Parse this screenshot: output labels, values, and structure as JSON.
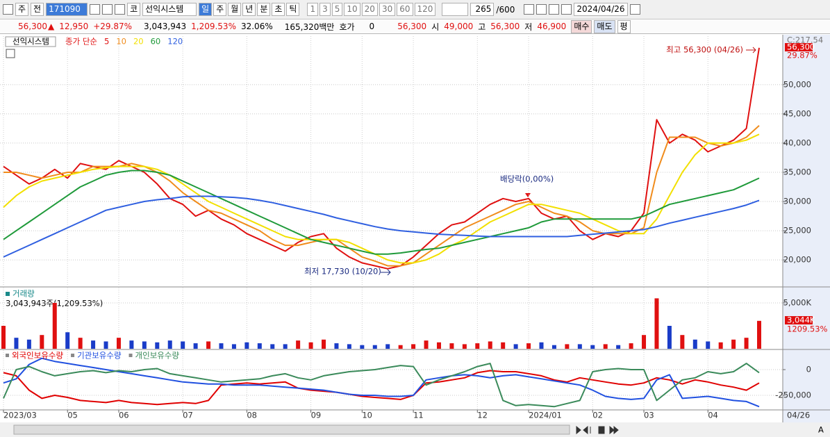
{
  "toolbar": {
    "period": "주",
    "prev": "전",
    "code": "171090",
    "market": "코",
    "name": "선익시스템",
    "intervals": [
      "일",
      "주",
      "월",
      "년",
      "분",
      "초",
      "틱"
    ],
    "multipliers": [
      "1",
      "3",
      "5",
      "10",
      "20",
      "30",
      "60",
      "120"
    ],
    "count": "265",
    "max": "/600",
    "date": "2024/04/26"
  },
  "info_bar": {
    "price": "56,300",
    "change": "12,950",
    "change_rate": "+29.87%",
    "volume": "3,043,943",
    "volume_rate": "1,209.53%",
    "turnover": "32.06%",
    "amount": "165,320백만",
    "quote_label": "호가",
    "quote": "0",
    "quote_price": "56,300",
    "open_label": "시",
    "open": "49,000",
    "high_label": "고",
    "high": "56,300",
    "low_label": "저",
    "low": "46,900",
    "buy": "매수",
    "sell": "매도",
    "avg": "평"
  },
  "status": {
    "zoom_icon": "A"
  },
  "chart_data": [
    {
      "type": "line",
      "title": "선익시스템",
      "legend_title": "종가 단순",
      "series": [
        {
          "name": "5",
          "color": "#e01010",
          "values": [
            36000,
            34500,
            33000,
            34000,
            35500,
            34000,
            36500,
            36000,
            35500,
            37000,
            36000,
            35000,
            33000,
            30500,
            29500,
            27500,
            28500,
            27000,
            26000,
            24500,
            23500,
            22500,
            21500,
            23000,
            24000,
            24500,
            22000,
            20500,
            19500,
            19000,
            18500,
            19000,
            20500,
            22500,
            24500,
            26000,
            26500,
            28000,
            29500,
            30500,
            30000,
            30500,
            28000,
            27000,
            27500,
            25000,
            23500,
            24500,
            24000,
            25000,
            28000,
            44000,
            40000,
            41500,
            40500,
            38500,
            39500,
            40500,
            42500,
            56300
          ]
        },
        {
          "name": "10",
          "color": "#f08c1c",
          "values": [
            35000,
            35000,
            34500,
            34000,
            34500,
            35000,
            35000,
            36000,
            36000,
            36000,
            36500,
            36000,
            35000,
            33500,
            31500,
            30000,
            28500,
            28000,
            27000,
            26000,
            25000,
            23500,
            22500,
            22500,
            23000,
            23500,
            23500,
            22000,
            20500,
            19800,
            19000,
            19000,
            19500,
            21000,
            22500,
            24000,
            25500,
            26500,
            27500,
            28500,
            29500,
            30000,
            29000,
            28000,
            27500,
            26500,
            25000,
            24500,
            24500,
            24500,
            25500,
            35000,
            41000,
            41000,
            41000,
            40000,
            39500,
            40000,
            41000,
            43000
          ]
        },
        {
          "name": "20",
          "color": "#f2e000",
          "values": [
            29000,
            31000,
            32500,
            33500,
            34000,
            34500,
            35000,
            35500,
            35800,
            36000,
            36000,
            36000,
            35500,
            34500,
            33000,
            31500,
            30000,
            29000,
            28000,
            27000,
            26000,
            25000,
            24000,
            23500,
            23500,
            23500,
            23500,
            23000,
            22000,
            21000,
            20000,
            19500,
            19500,
            20000,
            21000,
            22500,
            23500,
            25000,
            26500,
            27500,
            28500,
            29500,
            29500,
            29000,
            28500,
            28000,
            27000,
            26000,
            25000,
            24500,
            24500,
            27000,
            31000,
            35000,
            38000,
            40000,
            40000,
            40000,
            40500,
            41500
          ]
        },
        {
          "name": "60",
          "color": "#1f9a3a",
          "values": [
            23500,
            25000,
            26500,
            28000,
            29500,
            31000,
            32500,
            33500,
            34500,
            35000,
            35300,
            35300,
            35000,
            34500,
            33500,
            32500,
            31500,
            30500,
            29500,
            28500,
            27500,
            26500,
            25500,
            24500,
            23500,
            23000,
            22500,
            22000,
            21500,
            21000,
            21000,
            21200,
            21500,
            21800,
            22000,
            22500,
            23000,
            23500,
            24000,
            24500,
            25000,
            25500,
            26500,
            27000,
            27000,
            27000,
            27000,
            27000,
            27000,
            27000,
            27500,
            28500,
            29500,
            30000,
            30500,
            31000,
            31500,
            32000,
            33000,
            34000
          ]
        },
        {
          "name": "120",
          "color": "#2f5fe0",
          "values": [
            20500,
            21500,
            22500,
            23500,
            24500,
            25500,
            26500,
            27500,
            28500,
            29000,
            29500,
            30000,
            30300,
            30500,
            30800,
            30900,
            30900,
            30800,
            30700,
            30500,
            30200,
            29800,
            29300,
            28800,
            28300,
            27800,
            27200,
            26700,
            26200,
            25700,
            25300,
            25000,
            24800,
            24600,
            24400,
            24300,
            24200,
            24100,
            24000,
            24000,
            24000,
            24000,
            24000,
            24000,
            24000,
            24200,
            24400,
            24600,
            24800,
            25000,
            25200,
            25700,
            26300,
            26800,
            27300,
            27800,
            28300,
            28800,
            29400,
            30200
          ]
        }
      ],
      "ylim": [
        15500,
        58300
      ],
      "yticks": [
        {
          "value": 20000,
          "label": "20,000"
        },
        {
          "value": 25000,
          "label": "25,000"
        },
        {
          "value": 30000,
          "label": "30,000"
        },
        {
          "value": 35000,
          "label": "35,000"
        },
        {
          "value": 40000,
          "label": "40,000"
        },
        {
          "value": 45000,
          "label": "45,000"
        },
        {
          "value": 50000,
          "label": "50,000"
        }
      ],
      "grid": true,
      "annotations": [
        "최고 56,300 (04/26)",
        "배당락(0,00%)",
        "최저 17,730 (10/20)"
      ],
      "last_price_label": "56,300",
      "change_label": "29.87%",
      "scale_label": "C:217.54"
    },
    {
      "type": "bar",
      "title": "거래량",
      "subtitle": "3,043,943주(1,209.53%)",
      "values": [
        2500,
        1200,
        1000,
        1500,
        5000,
        1800,
        1200,
        900,
        800,
        1200,
        900,
        800,
        700,
        900,
        800,
        600,
        800,
        600,
        500,
        700,
        600,
        500,
        500,
        900,
        700,
        1000,
        600,
        500,
        400,
        400,
        500,
        400,
        500,
        900,
        700,
        600,
        500,
        600,
        800,
        700,
        500,
        600,
        700,
        400,
        500,
        500,
        400,
        500,
        400,
        600,
        1500,
        5500,
        2500,
        1500,
        1000,
        800,
        700,
        1000,
        1200,
        3043.943
      ],
      "up_color": "#e01010",
      "down_color": "#1a3cc8",
      "ylim": [
        0,
        6667
      ],
      "yticks": [
        {
          "value": 5000,
          "label": "5,000K"
        }
      ],
      "grid": true,
      "badges": [
        "3,044K",
        "1209.53%"
      ]
    },
    {
      "type": "line",
      "series": [
        {
          "name": "외국인보유수량",
          "color": "#e00000",
          "values": [
            -30000,
            -60000,
            -200000,
            -280000,
            -250000,
            -270000,
            -300000,
            -310000,
            -320000,
            -300000,
            -320000,
            -330000,
            -340000,
            -330000,
            -320000,
            -330000,
            -300000,
            -150000,
            -140000,
            -130000,
            -140000,
            -130000,
            -120000,
            -180000,
            -200000,
            -210000,
            -220000,
            -240000,
            -260000,
            -270000,
            -280000,
            -290000,
            -250000,
            -130000,
            -120000,
            -100000,
            -80000,
            -30000,
            -10000,
            -20000,
            -20000,
            -40000,
            -60000,
            -100000,
            -120000,
            -80000,
            -100000,
            -120000,
            -140000,
            -150000,
            -130000,
            -80000,
            -100000,
            -140000,
            -100000,
            -120000,
            -150000,
            -170000,
            -200000,
            -130000
          ]
        },
        {
          "name": "기관보유수량",
          "color": "#2050e0",
          "values": [
            -130000,
            -90000,
            50000,
            110000,
            80000,
            60000,
            40000,
            20000,
            0,
            -20000,
            -40000,
            -60000,
            -80000,
            -100000,
            -120000,
            -130000,
            -140000,
            -140000,
            -150000,
            -150000,
            -150000,
            -160000,
            -170000,
            -180000,
            -190000,
            -200000,
            -220000,
            -240000,
            -250000,
            -250000,
            -260000,
            -260000,
            -250000,
            -100000,
            -80000,
            -60000,
            -50000,
            -60000,
            -80000,
            -60000,
            -50000,
            -70000,
            -90000,
            -110000,
            -130000,
            -150000,
            -200000,
            -260000,
            -280000,
            -290000,
            -280000,
            -100000,
            -50000,
            -280000,
            -270000,
            -260000,
            -280000,
            -300000,
            -310000,
            -360000
          ]
        },
        {
          "name": "개인보유수량",
          "color": "#3a8a5a",
          "values": [
            -280000,
            0,
            30000,
            -20000,
            -60000,
            -40000,
            -20000,
            -10000,
            -30000,
            -10000,
            -20000,
            0,
            10000,
            -40000,
            -60000,
            -80000,
            -100000,
            -120000,
            -110000,
            -100000,
            -90000,
            -60000,
            -40000,
            -80000,
            -100000,
            -60000,
            -40000,
            -20000,
            -10000,
            0,
            20000,
            40000,
            30000,
            -150000,
            -100000,
            -60000,
            -20000,
            30000,
            60000,
            -300000,
            -350000,
            -340000,
            -350000,
            -360000,
            -330000,
            -300000,
            -20000,
            0,
            10000,
            0,
            0,
            -300000,
            -200000,
            -100000,
            -80000,
            -20000,
            -40000,
            -20000,
            60000,
            -30000
          ]
        }
      ],
      "ylim": [
        -391900,
        189200
      ],
      "yticks": [
        0,
        {
          "value": -250000,
          "label": "-250,000"
        }
      ],
      "grid": true,
      "categories": [
        "2023/03",
        null,
        null,
        null,
        null,
        "05",
        null,
        null,
        null,
        "06",
        null,
        null,
        null,
        null,
        "07",
        null,
        null,
        null,
        null,
        "08",
        null,
        null,
        null,
        null,
        "09",
        null,
        null,
        null,
        "10",
        null,
        null,
        null,
        "11",
        null,
        null,
        null,
        null,
        "12",
        null,
        null,
        null,
        "2024/01",
        null,
        null,
        null,
        null,
        "02",
        null,
        null,
        null,
        "03",
        null,
        null,
        null,
        null,
        "04",
        null,
        null,
        null,
        "04/26"
      ]
    }
  ]
}
